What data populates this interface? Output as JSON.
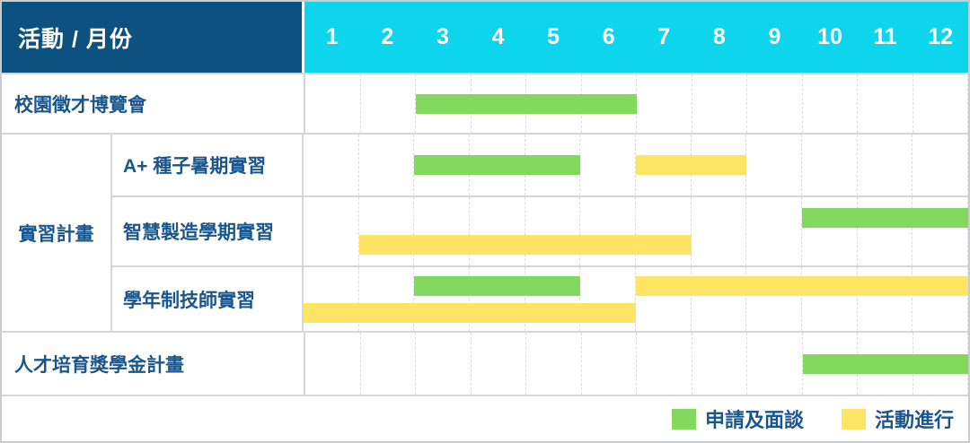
{
  "chart_data": {
    "type": "gantt",
    "header_title": "活動 / 月份",
    "months": [
      "1",
      "2",
      "3",
      "4",
      "5",
      "6",
      "7",
      "8",
      "9",
      "10",
      "11",
      "12"
    ],
    "x_axis": {
      "label": "月份",
      "range": [
        1,
        12
      ]
    },
    "sections": [
      {
        "type": "single",
        "row": {
          "label": "校園徵才博覽會",
          "lanes": 1,
          "bars": [
            {
              "kind": "apply",
              "start": 3,
              "end": 6,
              "lane": 0
            }
          ]
        }
      },
      {
        "type": "group",
        "label": "實習計畫",
        "rows": [
          {
            "label": "A+ 種子暑期實習",
            "lanes": 1,
            "bars": [
              {
                "kind": "apply",
                "start": 3,
                "end": 5,
                "lane": 0
              },
              {
                "kind": "run",
                "start": 7,
                "end": 8,
                "lane": 0
              }
            ]
          },
          {
            "label": "智慧製造學期實習",
            "lanes": 2,
            "bars": [
              {
                "kind": "apply",
                "start": 10,
                "end": 12,
                "lane": 0
              },
              {
                "kind": "run",
                "start": 2,
                "end": 7,
                "lane": 1
              }
            ]
          },
          {
            "label": "學年制技師實習",
            "lanes": 2,
            "bars": [
              {
                "kind": "apply",
                "start": 3,
                "end": 5,
                "lane": 0
              },
              {
                "kind": "run",
                "start": 7,
                "end": 12,
                "lane": 0
              },
              {
                "kind": "run",
                "start": 1,
                "end": 6,
                "lane": 1
              }
            ]
          }
        ]
      },
      {
        "type": "single",
        "row": {
          "label": "人才培育獎學金計畫",
          "lanes": 1,
          "bars": [
            {
              "kind": "apply",
              "start": 10,
              "end": 12,
              "lane": 0
            }
          ]
        }
      }
    ],
    "legend": [
      {
        "kind": "apply",
        "label": "申請及面談"
      },
      {
        "kind": "run",
        "label": "活動進行"
      }
    ],
    "colors": {
      "apply": "#82d95e",
      "run": "#fde464",
      "header_bg": "#0d5180",
      "month_header_bg": "#0cd5ec",
      "header_text": "#ffffff",
      "label_text": "#1a568c",
      "grid_line": "#d6d6d6"
    }
  }
}
